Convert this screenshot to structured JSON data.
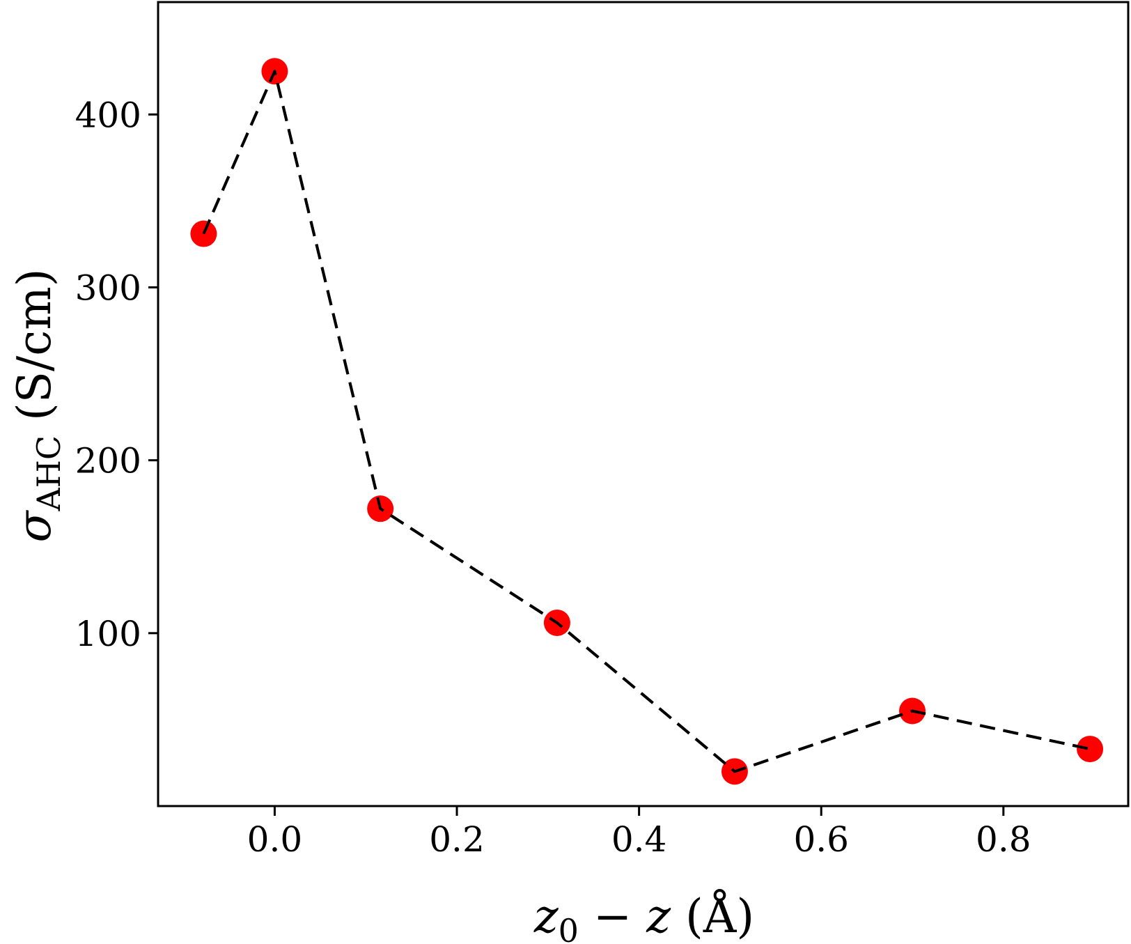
{
  "chart_data": {
    "type": "line",
    "title": "",
    "xlabel": "z₀ − z (Å)",
    "ylabel": "σAHC (S/cm)",
    "xlabel_parts": {
      "var1": "z",
      "sub1": "0",
      "op": " − ",
      "var2": "z",
      "unit": " (Å)"
    },
    "ylabel_parts": {
      "var": "σ",
      "sub": "AHC",
      "unit": " (S/cm)"
    },
    "xlim": [
      -0.128,
      0.937
    ],
    "ylim": [
      0,
      465
    ],
    "xticks": [
      0.0,
      0.2,
      0.4,
      0.6,
      0.8
    ],
    "xtick_labels": [
      "0.0",
      "0.2",
      "0.4",
      "0.6",
      "0.8"
    ],
    "yticks": [
      100,
      200,
      300,
      400
    ],
    "ytick_labels": [
      "100",
      "200",
      "300",
      "400"
    ],
    "grid": false,
    "series": [
      {
        "x": [
          -0.078,
          0.0,
          0.116,
          0.31,
          0.505,
          0.7,
          0.895
        ],
        "y": [
          331,
          425,
          172,
          106,
          20,
          55,
          33
        ],
        "marker_color": "#ff0000",
        "line_color": "#000000",
        "line_style": "dashed"
      }
    ]
  }
}
